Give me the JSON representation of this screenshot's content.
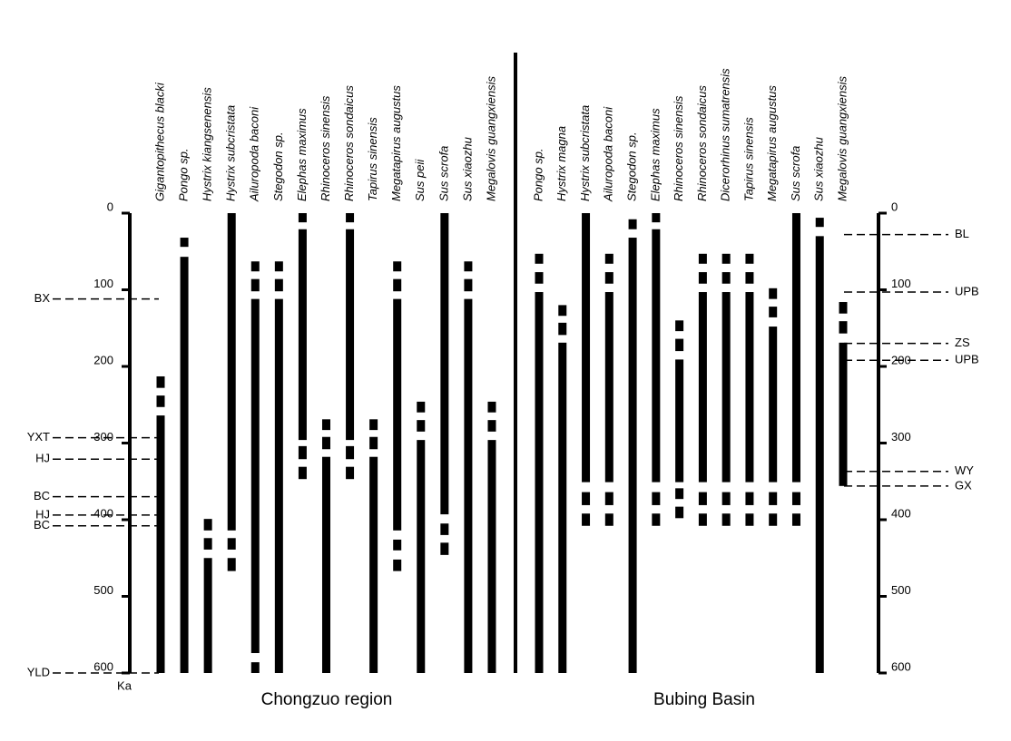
{
  "chart_data": [
    {
      "type": "range",
      "title": "Chongzuo region",
      "y_label": "Ka",
      "axis_side": "left",
      "color": "#000000",
      "y_inverted": true,
      "ylim": [
        0,
        600
      ],
      "yticks": [
        0,
        100,
        200,
        300,
        400,
        500,
        600
      ],
      "series": [
        {
          "name": "Gigantopithecus blacki",
          "ranges": [
            [
              213,
              228
            ],
            [
              238,
              253
            ],
            [
              264,
              600
            ]
          ]
        },
        {
          "name": "Pongo sp.",
          "ranges": [
            [
              32,
              44
            ],
            [
              57,
              600
            ]
          ]
        },
        {
          "name": "Hystrix kiangsenensis",
          "ranges": [
            [
              399,
              414
            ],
            [
              424,
              439
            ],
            [
              450,
              600
            ]
          ]
        },
        {
          "name": "Hystrix subcristata",
          "ranges": [
            [
              0,
              414
            ],
            [
              424,
              439
            ],
            [
              450,
              467
            ]
          ]
        },
        {
          "name": "Ailuropoda baconi",
          "ranges": [
            [
              63,
              76
            ],
            [
              86,
              102
            ],
            [
              112,
              574
            ],
            [
              586,
              600
            ]
          ]
        },
        {
          "name": "Stegodon sp.",
          "ranges": [
            [
              63,
              76
            ],
            [
              86,
              102
            ],
            [
              112,
              600
            ]
          ]
        },
        {
          "name": "Elephas maximus",
          "ranges": [
            [
              0,
              12
            ],
            [
              21,
              296
            ],
            [
              304,
              321
            ],
            [
              331,
              347
            ]
          ]
        },
        {
          "name": "Rhinoceros sinensis",
          "ranges": [
            [
              269,
              283
            ],
            [
              292,
              308
            ],
            [
              318,
              600
            ]
          ]
        },
        {
          "name": "Rhinoceros sondaicus",
          "ranges": [
            [
              0,
              12
            ],
            [
              21,
              296
            ],
            [
              304,
              321
            ],
            [
              331,
              347
            ]
          ]
        },
        {
          "name": "Tapirus sinensis",
          "ranges": [
            [
              269,
              283
            ],
            [
              292,
              308
            ],
            [
              318,
              600
            ]
          ]
        },
        {
          "name": "Megatapirus augustus",
          "ranges": [
            [
              63,
              76
            ],
            [
              86,
              102
            ],
            [
              112,
              414
            ],
            [
              426,
              440
            ],
            [
              452,
              467
            ]
          ]
        },
        {
          "name": "Sus peii",
          "ranges": [
            [
              246,
              260
            ],
            [
              270,
              285
            ],
            [
              296,
              600
            ]
          ]
        },
        {
          "name": "Sus scrofa",
          "ranges": [
            [
              0,
              393
            ],
            [
              405,
              420
            ],
            [
              430,
              446
            ]
          ]
        },
        {
          "name": "Sus xiaozhu",
          "ranges": [
            [
              63,
              76
            ],
            [
              86,
              102
            ],
            [
              112,
              600
            ]
          ]
        },
        {
          "name": "Megalovis guangxiensis",
          "ranges": [
            [
              246,
              260
            ],
            [
              270,
              285
            ],
            [
              296,
              600
            ]
          ]
        }
      ],
      "annotations": [
        {
          "label": "BX",
          "value": 112
        },
        {
          "label": "YXT",
          "value": 293
        },
        {
          "label": "HJ",
          "value": 321
        },
        {
          "label": "BC",
          "value": 370
        },
        {
          "label": "HJ",
          "value": 394
        },
        {
          "label": "BC",
          "value": 408
        },
        {
          "label": "YLD",
          "value": 600
        }
      ]
    },
    {
      "type": "range",
      "title": "Bubing Basin",
      "axis_side": "right",
      "color": "#000000",
      "y_inverted": true,
      "ylim": [
        0,
        600
      ],
      "yticks": [
        0,
        100,
        200,
        300,
        400,
        500,
        600
      ],
      "series": [
        {
          "name": "Pongo sp.",
          "ranges": [
            [
              53,
              66
            ],
            [
              77,
              92
            ],
            [
              103,
              600
            ]
          ]
        },
        {
          "name": "Hystrix magna",
          "ranges": [
            [
              120,
              134
            ],
            [
              143,
              159
            ],
            [
              169,
              600
            ]
          ]
        },
        {
          "name": "Hystrix subcristata",
          "ranges": [
            [
              0,
              351
            ],
            [
              364,
              381
            ],
            [
              392,
              408
            ]
          ]
        },
        {
          "name": "Ailuropoda baconi",
          "ranges": [
            [
              53,
              66
            ],
            [
              77,
              92
            ],
            [
              103,
              351
            ],
            [
              364,
              381
            ],
            [
              392,
              408
            ]
          ]
        },
        {
          "name": "Stegodon sp.",
          "ranges": [
            [
              8,
              21
            ],
            [
              32,
              600
            ]
          ]
        },
        {
          "name": "Elephas maximus",
          "ranges": [
            [
              0,
              12
            ],
            [
              21,
              351
            ],
            [
              364,
              381
            ],
            [
              392,
              408
            ]
          ]
        },
        {
          "name": "Rhinoceros sinensis",
          "ranges": [
            [
              140,
              154
            ],
            [
              164,
              180
            ],
            [
              191,
              351
            ],
            [
              359,
              373
            ],
            [
              383,
              398
            ]
          ]
        },
        {
          "name": "Rhinoceros sondaicus",
          "ranges": [
            [
              53,
              66
            ],
            [
              77,
              92
            ],
            [
              103,
              351
            ],
            [
              364,
              381
            ],
            [
              392,
              408
            ]
          ]
        },
        {
          "name": "Dicerorhinus sumatrensis",
          "ranges": [
            [
              53,
              66
            ],
            [
              77,
              92
            ],
            [
              103,
              351
            ],
            [
              364,
              381
            ],
            [
              392,
              408
            ]
          ]
        },
        {
          "name": "Tapirus sinensis",
          "ranges": [
            [
              53,
              66
            ],
            [
              77,
              92
            ],
            [
              103,
              351
            ],
            [
              364,
              381
            ],
            [
              392,
              408
            ]
          ]
        },
        {
          "name": "Megatapirus augustus",
          "ranges": [
            [
              98,
              112
            ],
            [
              122,
              136
            ],
            [
              148,
              351
            ],
            [
              364,
              381
            ],
            [
              392,
              408
            ]
          ]
        },
        {
          "name": "Sus scrofa",
          "ranges": [
            [
              0,
              351
            ],
            [
              364,
              381
            ],
            [
              392,
              408
            ]
          ]
        },
        {
          "name": "Sus xiaozhu",
          "ranges": [
            [
              6,
              18
            ],
            [
              30,
              600
            ]
          ]
        },
        {
          "name": "Megalovis guangxiensis",
          "ranges": [
            [
              116,
              131
            ],
            [
              141,
              157
            ],
            [
              169,
              356
            ]
          ]
        }
      ],
      "annotations": [
        {
          "label": "BL",
          "value": 28
        },
        {
          "label": "UPB",
          "value": 103
        },
        {
          "label": "ZS",
          "value": 170
        },
        {
          "label": "UPB",
          "value": 192
        },
        {
          "label": "WY",
          "value": 337
        },
        {
          "label": "GX",
          "value": 356
        }
      ]
    }
  ]
}
